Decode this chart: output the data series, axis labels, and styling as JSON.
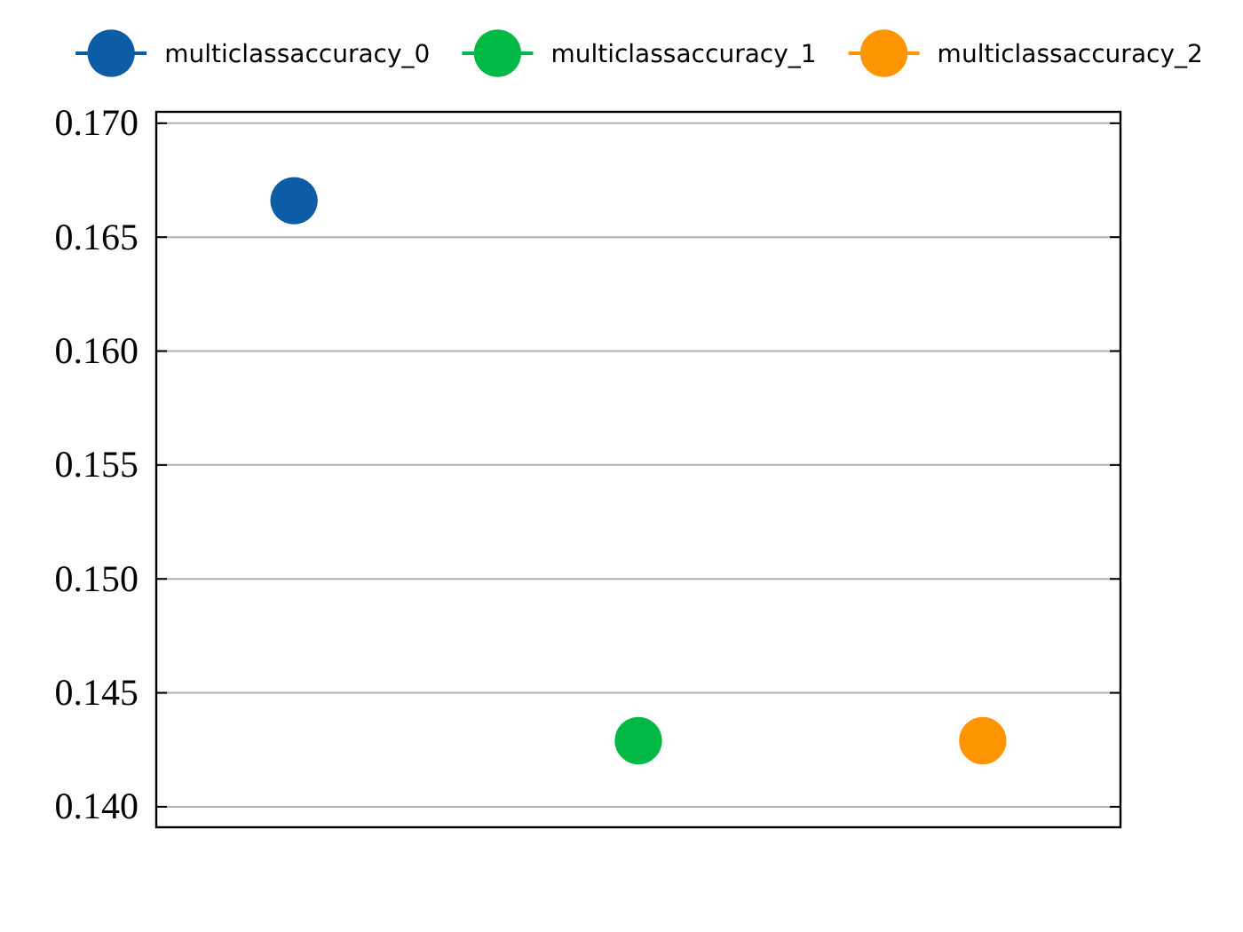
{
  "chart_data": {
    "type": "scatter",
    "categories": [
      null,
      null,
      null
    ],
    "series": [
      {
        "name": "multiclassaccuracy_0",
        "color": "#0c5da5",
        "values": [
          0.1666,
          null,
          null
        ]
      },
      {
        "name": "multiclassaccuracy_1",
        "color": "#00b945",
        "values": [
          null,
          0.1429,
          null
        ]
      },
      {
        "name": "multiclassaccuracy_2",
        "color": "#ff9500",
        "values": [
          null,
          null,
          0.1429
        ]
      }
    ],
    "ylim": [
      0.1391,
      0.1705
    ],
    "yticks": [
      {
        "value": 0.14,
        "label": "0.140"
      },
      0.145,
      {
        "value": 0.15,
        "label": "0.150"
      },
      0.155,
      {
        "value": 0.16,
        "label": "0.160"
      },
      0.165,
      {
        "value": 0.17,
        "label": "0.170"
      }
    ],
    "grid": "y",
    "legend": "top",
    "marker": "circle"
  }
}
